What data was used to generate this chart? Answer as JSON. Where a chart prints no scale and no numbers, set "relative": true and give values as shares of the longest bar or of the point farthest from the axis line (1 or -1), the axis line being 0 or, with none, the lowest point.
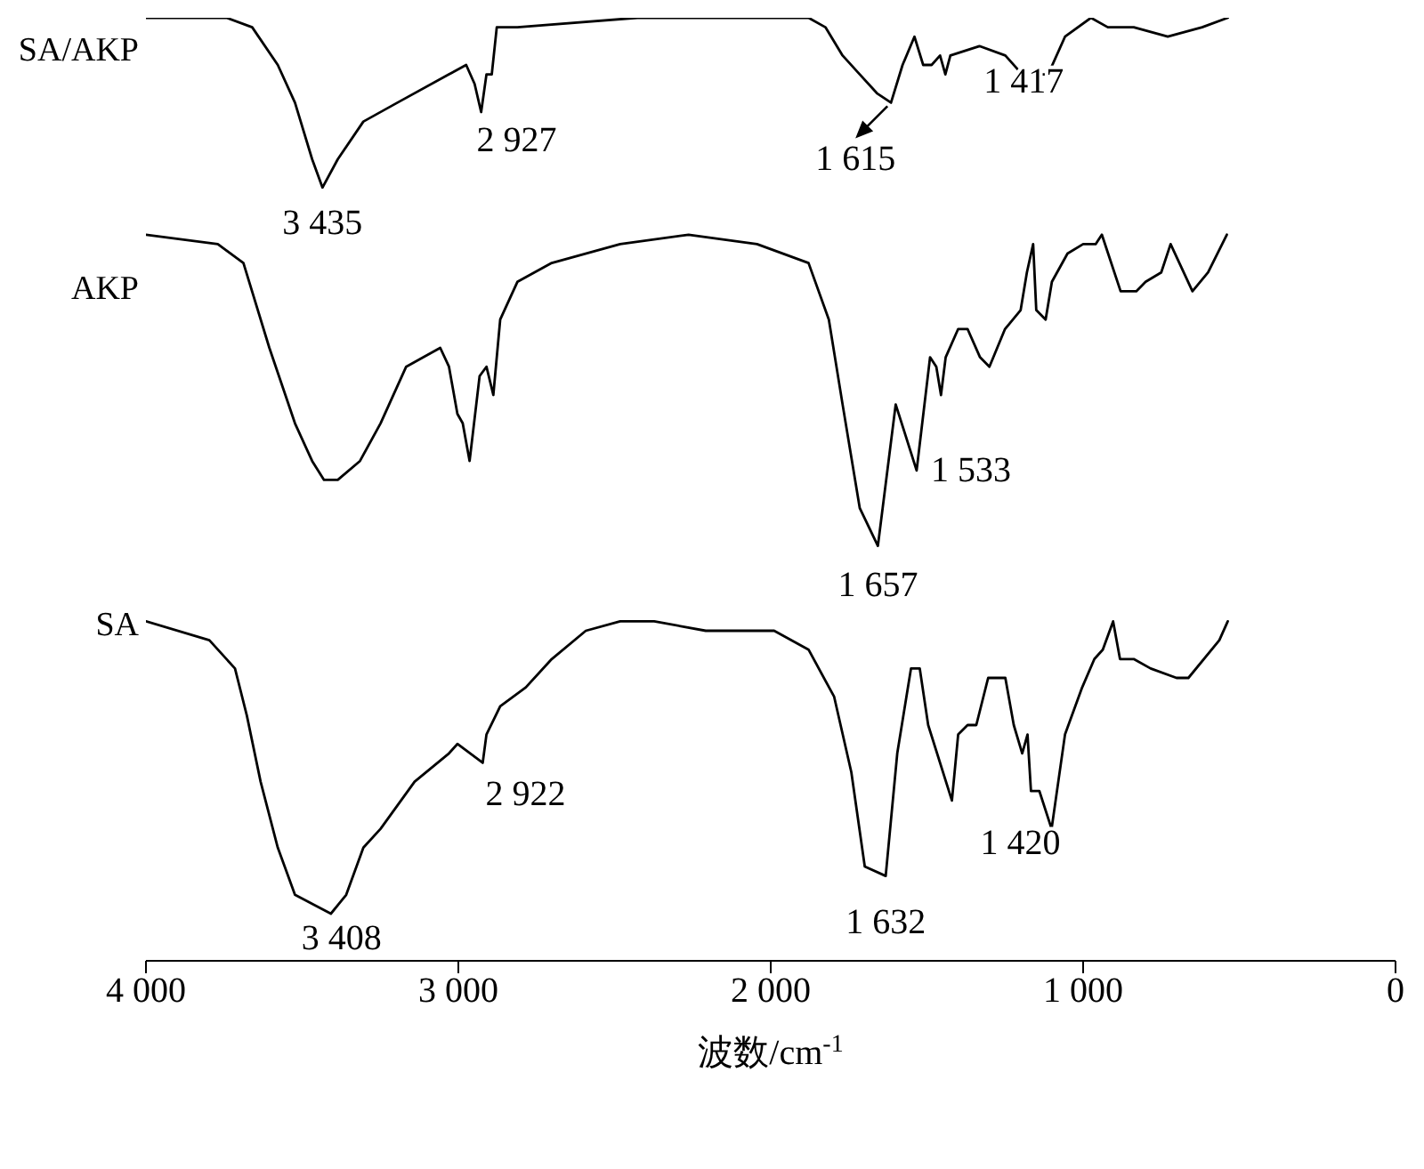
{
  "chart_data": {
    "type": "line",
    "relative": true,
    "xlabel": "波数/cm$^{-1}$",
    "xlim": [
      4000,
      0
    ],
    "xticks": [
      {
        "value": 4000,
        "label": "4 000"
      },
      {
        "value": 3000,
        "label": "3 000"
      },
      {
        "value": 2000,
        "label": "2 000"
      },
      {
        "value": 1000,
        "label": "1 000"
      },
      0
    ],
    "grid": false,
    "legend": false,
    "marker": "none",
    "line_style": "solid",
    "series": [
      {
        "name": "SA/AKP",
        "color": "#000000",
        "x": [
          4000,
          3742,
          3660,
          3578,
          3523,
          3468,
          3435,
          3386,
          3304,
          3195,
          3030,
          2975,
          2948,
          2927,
          2910,
          2893,
          2877,
          2811,
          2427,
          2153,
          1879,
          1825,
          1770,
          1715,
          1660,
          1615,
          1578,
          1540,
          1512,
          1485,
          1458,
          1441,
          1425,
          1332,
          1249,
          1195,
          1112,
          1058,
          975,
          921,
          838,
          729,
          619,
          537
        ],
        "values": [
          1,
          1,
          0.99,
          0.95,
          0.91,
          0.85,
          0.82,
          0.85,
          0.89,
          0.91,
          0.94,
          0.95,
          0.93,
          0.9,
          0.94,
          0.94,
          0.99,
          0.99,
          1,
          1,
          1,
          0.99,
          0.96,
          0.94,
          0.92,
          0.91,
          0.95,
          0.98,
          0.95,
          0.95,
          0.96,
          0.94,
          0.96,
          0.97,
          0.96,
          0.94,
          0.94,
          0.98,
          1,
          0.99,
          0.99,
          0.98,
          0.99,
          1
        ]
      },
      {
        "name": "AKP",
        "color": "#000000",
        "x": [
          4000,
          3770,
          3688,
          3605,
          3523,
          3468,
          3430,
          3386,
          3315,
          3249,
          3167,
          3112,
          3058,
          3030,
          3003,
          2986,
          2964,
          2932,
          2910,
          2888,
          2866,
          2811,
          2701,
          2482,
          2263,
          2044,
          1879,
          1814,
          1770,
          1715,
          1657,
          1600,
          1533,
          1490,
          1470,
          1455,
          1440,
          1400,
          1370,
          1330,
          1300,
          1250,
          1200,
          1180,
          1160,
          1150,
          1120,
          1100,
          1050,
          1000,
          960,
          940,
          920,
          880,
          830,
          800,
          750,
          720,
          650,
          600,
          540
        ],
        "values": [
          0.77,
          0.76,
          0.74,
          0.65,
          0.57,
          0.53,
          0.51,
          0.51,
          0.53,
          0.57,
          0.63,
          0.64,
          0.65,
          0.63,
          0.58,
          0.57,
          0.53,
          0.62,
          0.63,
          0.6,
          0.68,
          0.72,
          0.74,
          0.76,
          0.77,
          0.76,
          0.74,
          0.68,
          0.59,
          0.48,
          0.44,
          0.59,
          0.52,
          0.64,
          0.63,
          0.6,
          0.64,
          0.67,
          0.67,
          0.64,
          0.63,
          0.67,
          0.69,
          0.73,
          0.76,
          0.69,
          0.68,
          0.72,
          0.75,
          0.76,
          0.76,
          0.77,
          0.75,
          0.71,
          0.71,
          0.72,
          0.73,
          0.76,
          0.71,
          0.73,
          0.77
        ]
      },
      {
        "name": "SA",
        "color": "#000000",
        "x": [
          4000,
          3797,
          3715,
          3677,
          3633,
          3578,
          3523,
          3408,
          3359,
          3304,
          3249,
          3140,
          3030,
          3003,
          2922,
          2910,
          2866,
          2784,
          2701,
          2592,
          2482,
          2373,
          2208,
          2099,
          1989,
          1879,
          1797,
          1742,
          1699,
          1632,
          1595,
          1551,
          1523,
          1496,
          1420,
          1400,
          1370,
          1342,
          1304,
          1249,
          1222,
          1195,
          1178,
          1167,
          1140,
          1101,
          1058,
          1003,
          964,
          937,
          904,
          882,
          838,
          784,
          701,
          663,
          564,
          537
        ],
        "values": [
          0.36,
          0.34,
          0.31,
          0.26,
          0.19,
          0.12,
          0.07,
          0.05,
          0.07,
          0.12,
          0.14,
          0.19,
          0.22,
          0.23,
          0.21,
          0.24,
          0.27,
          0.29,
          0.32,
          0.35,
          0.36,
          0.36,
          0.35,
          0.35,
          0.35,
          0.33,
          0.28,
          0.2,
          0.1,
          0.09,
          0.22,
          0.31,
          0.31,
          0.25,
          0.17,
          0.24,
          0.25,
          0.25,
          0.3,
          0.3,
          0.25,
          0.22,
          0.24,
          0.18,
          0.18,
          0.14,
          0.24,
          0.29,
          0.32,
          0.33,
          0.36,
          0.32,
          0.32,
          0.31,
          0.3,
          0.3,
          0.34,
          0.36
        ]
      }
    ],
    "annotations": [
      {
        "text": "3 435",
        "x": 3435,
        "y": 0.82
      },
      {
        "text": "2 927",
        "x": 2927,
        "y": 0.9
      },
      {
        "text": "1 615",
        "x": 1615,
        "y": 0.91
      },
      {
        "text": "1 417",
        "x": 1441,
        "y": 0.94
      },
      {
        "text": "1 657",
        "x": 1657,
        "y": 0.44
      },
      {
        "text": "1 533",
        "x": 1533,
        "y": 0.52
      },
      {
        "text": "3 408",
        "x": 3408,
        "y": 0.05
      },
      {
        "text": "2 922",
        "x": 2922,
        "y": 0.21
      },
      {
        "text": "1 632",
        "x": 1632,
        "y": 0.09
      },
      {
        "text": "1 420",
        "x": 1420,
        "y": 0.17
      }
    ]
  }
}
